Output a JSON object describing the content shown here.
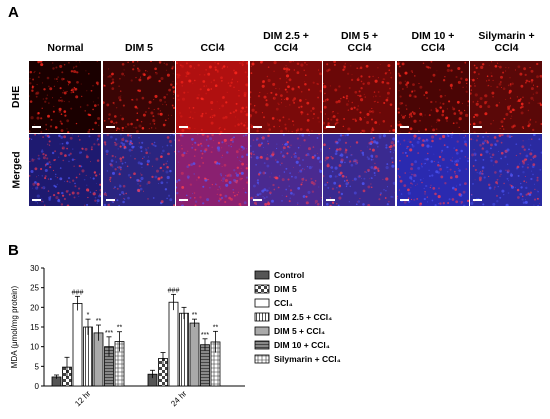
{
  "panels": {
    "a": {
      "letter": "A",
      "columns": [
        [
          "Normal"
        ],
        [
          "DIM 5"
        ],
        [
          "CCl4"
        ],
        [
          "DIM 2.5 +",
          "CCl4"
        ],
        [
          "DIM 5 +",
          "CCl4"
        ],
        [
          "DIM 10  +",
          "CCl4"
        ],
        [
          "Silymarin +",
          "CCl4"
        ]
      ],
      "rows": [
        "DHE",
        "Merged"
      ],
      "colors": {
        "dhe_tints": [
          "#1a0000",
          "#3a0505",
          "#b01010",
          "#7a0a0a",
          "#6a0808",
          "#4a0505",
          "#5a0808"
        ],
        "merged_tints": [
          "#1e1a70",
          "#2a2580",
          "#8a2070",
          "#4a2a90",
          "#3a2a90",
          "#2a2ab0",
          "#2a2aa0"
        ]
      }
    },
    "b": {
      "letter": "B"
    }
  },
  "chart_data": {
    "type": "bar",
    "ylabel": "MDA (μmol/mg protein)",
    "ylim": [
      0,
      30
    ],
    "yticks": [
      0,
      5,
      10,
      15,
      20,
      25,
      30
    ],
    "categories": [
      "12 hr",
      "24 hr"
    ],
    "series": [
      {
        "name": "Control",
        "values": [
          2.3,
          3.0
        ],
        "errors": [
          0.5,
          1.0
        ],
        "pattern": "dark",
        "sig": [
          "",
          ""
        ]
      },
      {
        "name": "DIM 5",
        "values": [
          4.8,
          7.0
        ],
        "errors": [
          2.5,
          1.5
        ],
        "pattern": "check",
        "sig": [
          "",
          ""
        ]
      },
      {
        "name": "CCl₄",
        "values": [
          21.0,
          21.3
        ],
        "errors": [
          1.8,
          2.0
        ],
        "pattern": "white",
        "sig": [
          "###",
          "###"
        ]
      },
      {
        "name": "DIM 2.5 + CCl₄",
        "values": [
          15.0,
          18.5
        ],
        "errors": [
          2.0,
          1.5
        ],
        "pattern": "vlines",
        "sig": [
          "*",
          ""
        ]
      },
      {
        "name": "DIM 5 + CCl₄",
        "values": [
          13.5,
          16.0
        ],
        "errors": [
          2.0,
          1.0
        ],
        "pattern": "gray",
        "sig": [
          "**",
          "**"
        ]
      },
      {
        "name": "DIM 10 + CCl₄",
        "values": [
          10.0,
          10.5
        ],
        "errors": [
          2.5,
          1.5
        ],
        "pattern": "hlines",
        "sig": [
          "***",
          "***"
        ]
      },
      {
        "name": "Silymarin + CCl₄",
        "values": [
          11.3,
          11.2
        ],
        "errors": [
          2.5,
          2.7
        ],
        "pattern": "grid",
        "sig": [
          "**",
          "**"
        ]
      }
    ],
    "grid": false,
    "legend_position": "right"
  }
}
